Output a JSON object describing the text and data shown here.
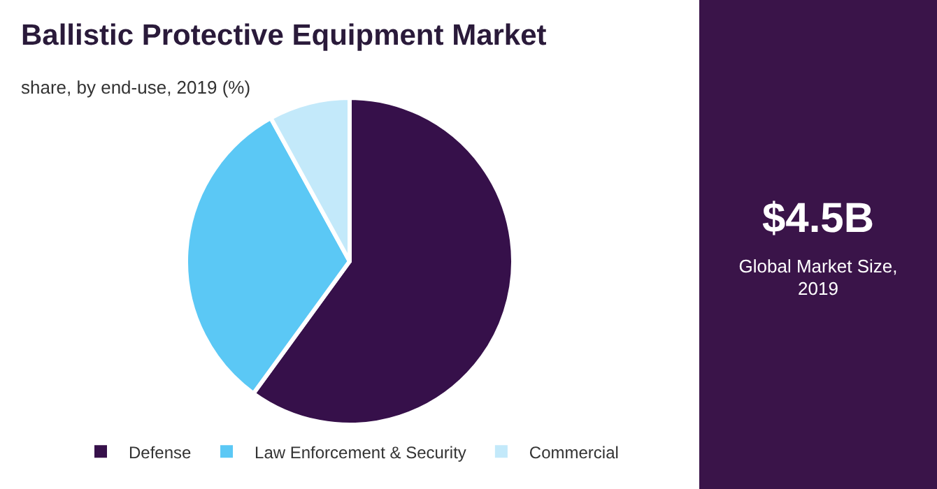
{
  "chart_data": {
    "type": "pie",
    "title": "Ballistic Protective Equipment Market",
    "subtitle": "share, by end-use, 2019 (%)",
    "categories": [
      "Defense",
      "Law Enforcement & Security",
      "Commercial"
    ],
    "values": [
      60,
      32,
      8
    ],
    "colors": [
      "#36104a",
      "#5bc8f5",
      "#c3e9fa"
    ],
    "legend": "bottom",
    "annotations": [
      "$4.5B",
      "Global Market Size, 2019"
    ]
  }
}
